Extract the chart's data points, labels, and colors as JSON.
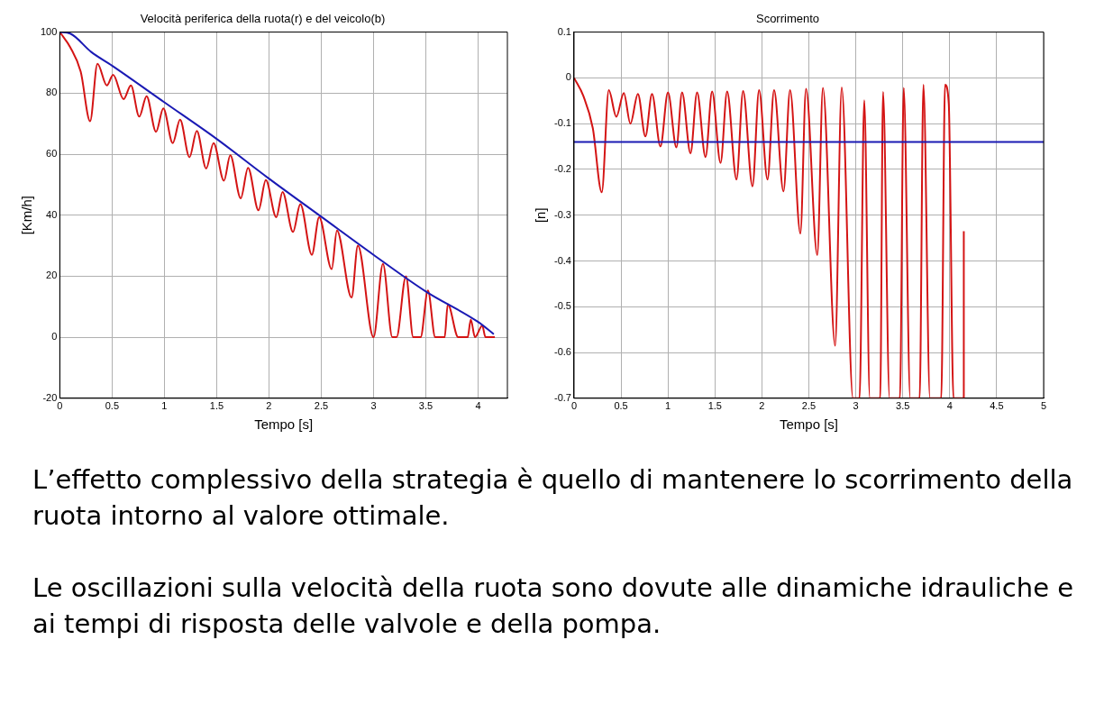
{
  "chart_data": [
    {
      "type": "line",
      "title": "Velocità periferica della ruota(r) e del veicolo(b)",
      "xlabel": "Tempo [s]",
      "ylabel": "[Km/h]",
      "xlim": [
        0,
        4.28
      ],
      "xticks": [
        0,
        0.5,
        1,
        1.5,
        2,
        2.5,
        3,
        3.5,
        4
      ],
      "ylim": [
        -20,
        100
      ],
      "yticks": [
        -20,
        0,
        20,
        40,
        60,
        80,
        100
      ],
      "grid": true,
      "line_style": "solid",
      "series": [
        {
          "color": "#1a1ab4",
          "x": [
            0,
            0.1,
            0.3,
            0.5,
            1,
            1.5,
            2,
            2.5,
            3,
            3.5,
            4,
            4.15
          ],
          "values": [
            100,
            99.5,
            93.5,
            89,
            77,
            65,
            52,
            39.5,
            27,
            15,
            5,
            1
          ]
        },
        {
          "color": "#d41414",
          "x": [
            0,
            0.1,
            0.2,
            0.29,
            0.36,
            0.45,
            0.51,
            0.61,
            0.68,
            0.76,
            0.83,
            0.92,
            0.99,
            1.08,
            1.15,
            1.24,
            1.31,
            1.4,
            1.47,
            1.57,
            1.63,
            1.73,
            1.8,
            1.9,
            1.97,
            2.07,
            2.13,
            2.23,
            2.3,
            2.41,
            2.48,
            2.6,
            2.65,
            2.79,
            2.85,
            3.0,
            3.09,
            3.18,
            3.22,
            3.31,
            3.38,
            3.45,
            3.52,
            3.59,
            3.68,
            3.71,
            3.81,
            3.9,
            3.93,
            3.97,
            4.04,
            4.07,
            4.16
          ],
          "values": [
            100,
            95,
            87,
            70.8,
            89.6,
            82.5,
            86,
            78,
            82.5,
            72.3,
            79,
            67.3,
            75,
            63.6,
            71.3,
            59,
            67.6,
            55.3,
            63.6,
            51.3,
            59.6,
            45.5,
            55.5,
            41.6,
            51.5,
            39.3,
            47.6,
            34.5,
            43.6,
            27,
            39.3,
            22.3,
            35,
            13,
            30,
            0,
            24,
            0,
            0,
            20,
            0,
            0,
            15.3,
            0,
            0,
            10.8,
            0,
            0,
            5.8,
            0,
            3.8,
            0,
            0
          ]
        }
      ]
    },
    {
      "type": "line",
      "title": "Scorrimento",
      "xlabel": "Tempo [s]",
      "ylabel": "[n]",
      "xlim": [
        0,
        5
      ],
      "xticks": [
        0,
        0.5,
        1,
        1.5,
        2,
        2.5,
        3,
        3.5,
        4,
        4.5,
        5
      ],
      "ylim": [
        -0.7,
        0.1
      ],
      "yticks": [
        -0.7,
        -0.6,
        -0.5,
        -0.4,
        -0.3,
        -0.2,
        -0.1,
        0,
        0.1
      ],
      "grid": true,
      "line_style": "solid",
      "ref_lines": [
        {
          "axis": "y",
          "value": -0.14,
          "color": "#1a1ab4"
        }
      ],
      "series": [
        {
          "color": "#d41414",
          "x": [
            0,
            0.1,
            0.2,
            0.295,
            0.37,
            0.45,
            0.53,
            0.6,
            0.68,
            0.76,
            0.83,
            0.92,
            1.0,
            1.09,
            1.15,
            1.24,
            1.31,
            1.4,
            1.47,
            1.56,
            1.63,
            1.73,
            1.8,
            1.9,
            1.97,
            2.06,
            2.13,
            2.23,
            2.3,
            2.41,
            2.47,
            2.59,
            2.65,
            2.78,
            2.85,
            2.97,
            3.04,
            3.09,
            3.15,
            3.26,
            3.29,
            3.36,
            3.47,
            3.51,
            3.58,
            3.68,
            3.72,
            3.79,
            3.91,
            3.95,
            3.99,
            4.04,
            4.15,
            4.15
          ],
          "values": [
            0,
            -0.04,
            -0.11,
            -0.25,
            -0.027,
            -0.085,
            -0.033,
            -0.1,
            -0.035,
            -0.128,
            -0.035,
            -0.15,
            -0.032,
            -0.152,
            -0.032,
            -0.165,
            -0.032,
            -0.173,
            -0.03,
            -0.186,
            -0.03,
            -0.222,
            -0.029,
            -0.237,
            -0.027,
            -0.222,
            -0.027,
            -0.248,
            -0.027,
            -0.34,
            -0.024,
            -0.387,
            -0.022,
            -0.585,
            -0.021,
            -0.7,
            -0.7,
            -0.049,
            -0.7,
            -0.7,
            -0.031,
            -0.7,
            -0.7,
            -0.022,
            -0.7,
            -0.7,
            -0.015,
            -0.7,
            -0.7,
            -0.015,
            -0.056,
            -0.7,
            -0.7,
            -0.335
          ]
        }
      ]
    },
    {
      "type": "other",
      "annotations": [
        "L’effetto complessivo della strategia è quello di mantenere lo scorrimento della ruota intorno al valore ottimale.",
        "Le oscillazioni sulla velocità della ruota sono dovute alle dinamiche idrauliche e ai tempi di risposta delle valvole e della pompa."
      ]
    }
  ]
}
